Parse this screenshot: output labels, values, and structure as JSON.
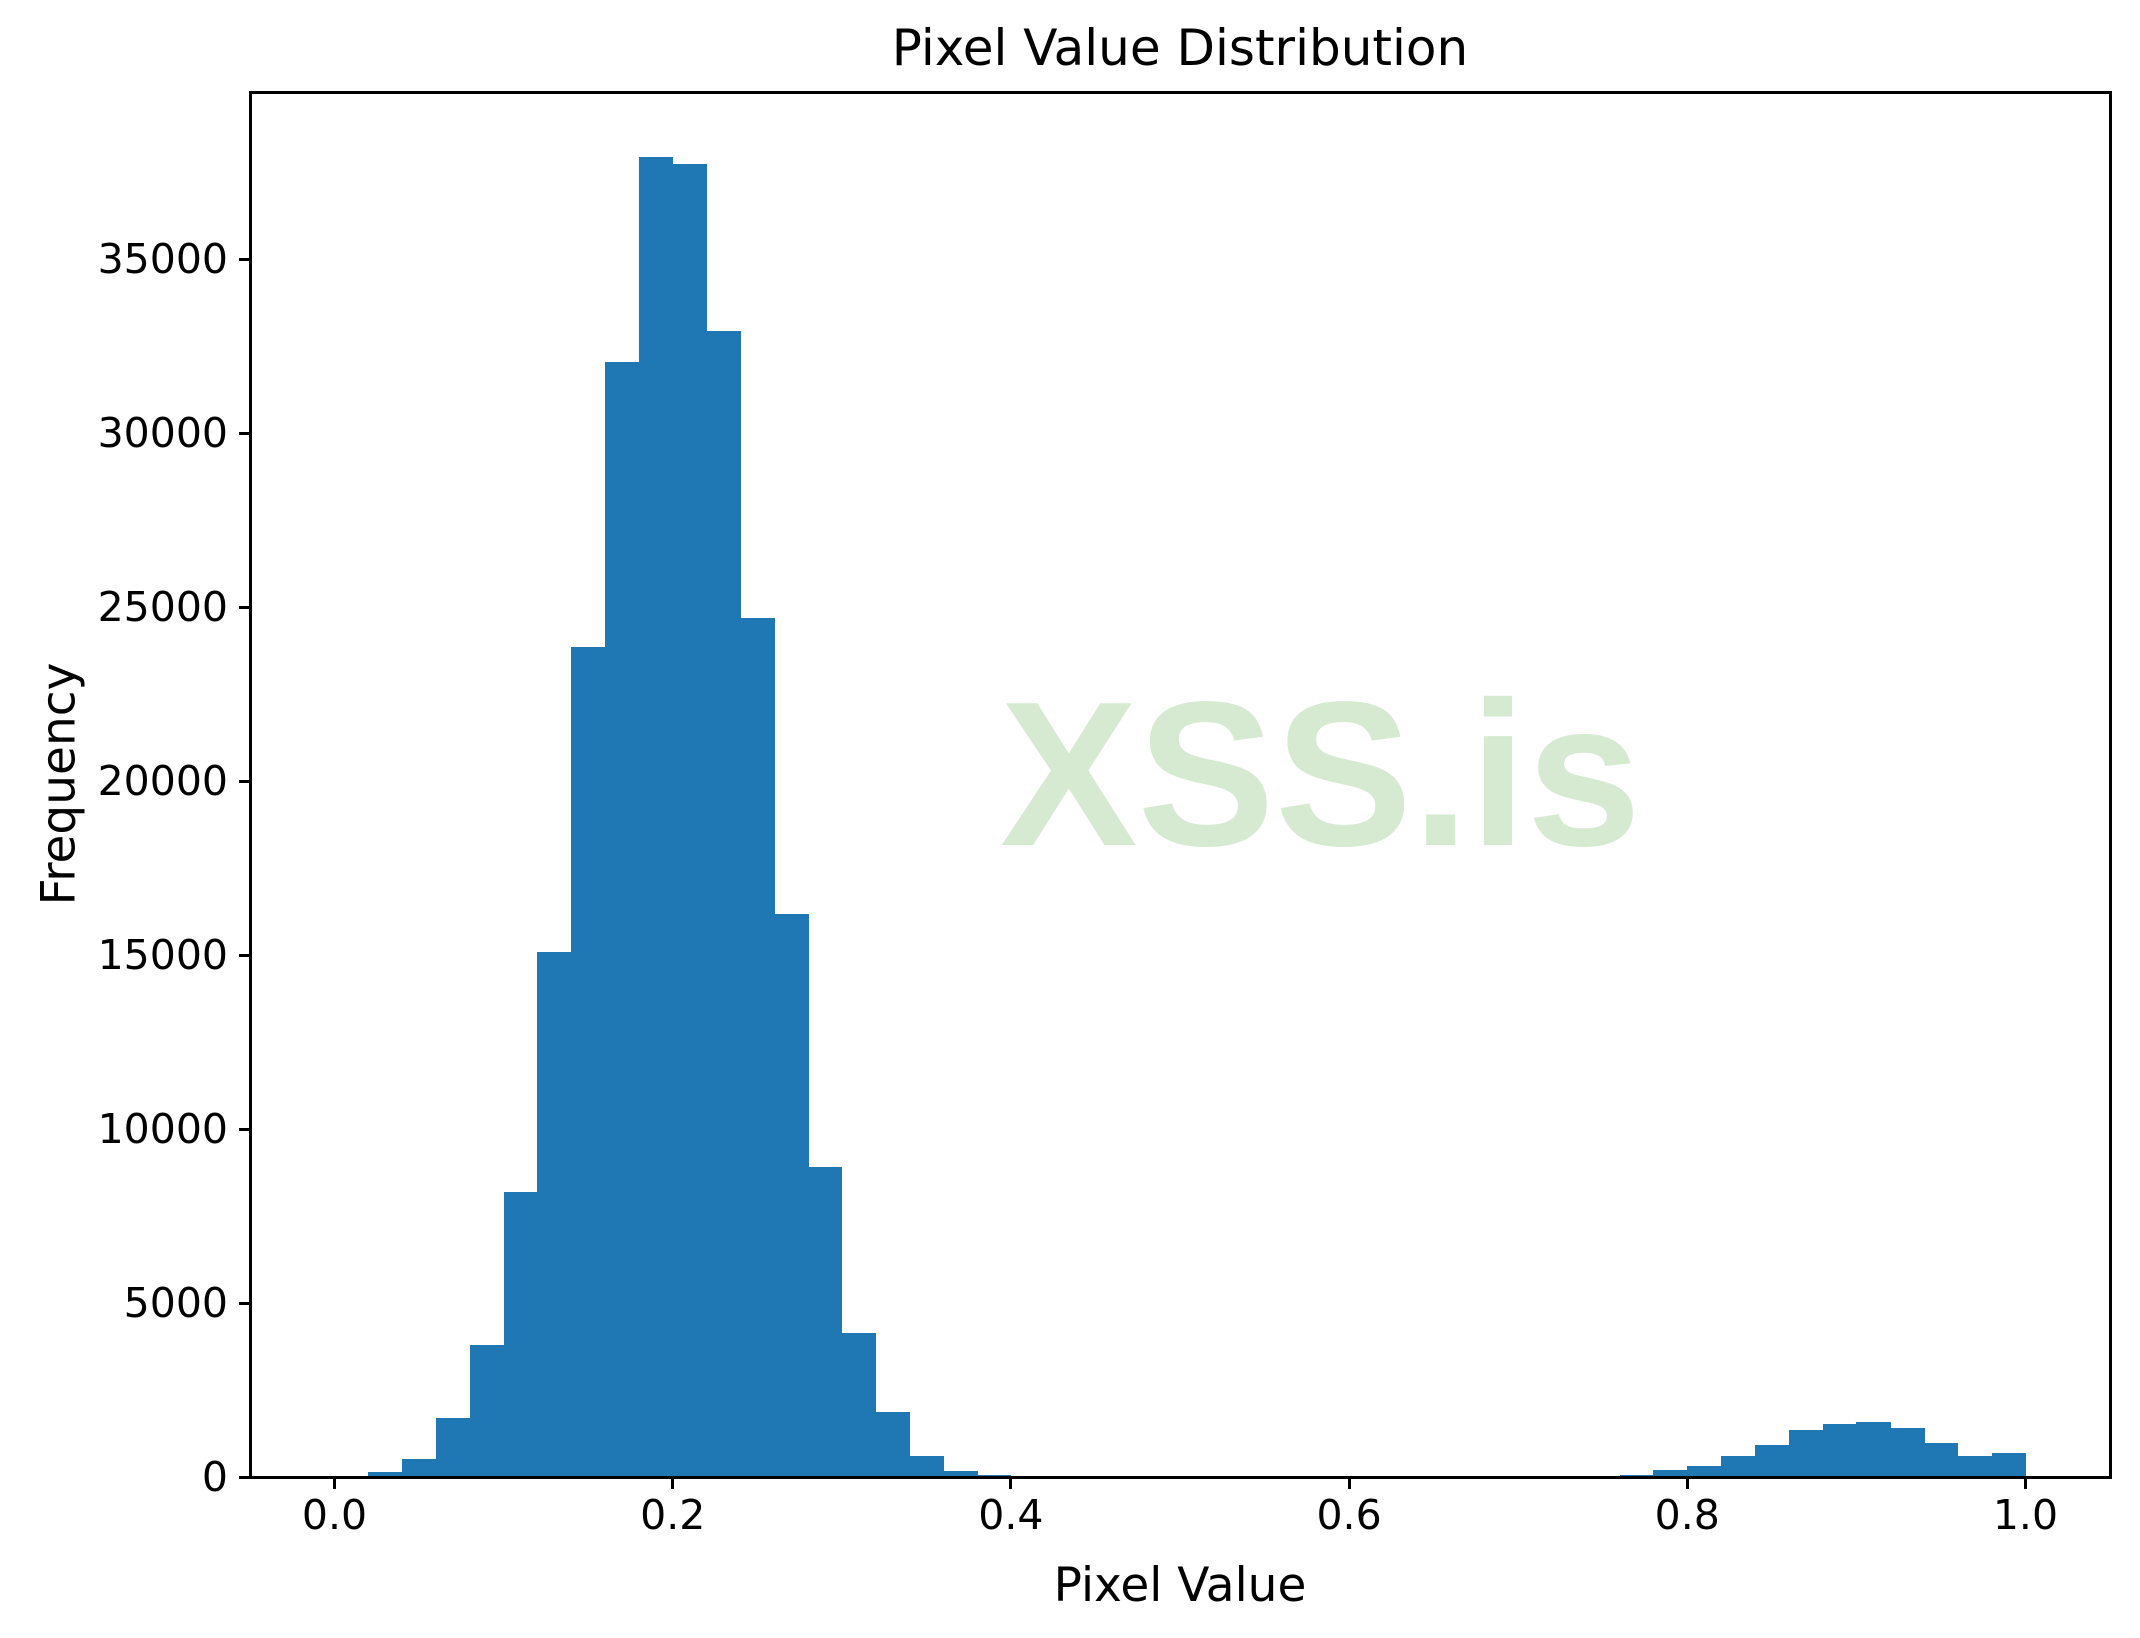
{
  "figure": {
    "background": "#ffffff"
  },
  "watermark": {
    "text": "XSS.is",
    "color": "#afd7a7",
    "opacity": 0.5
  },
  "chart_data": {
    "type": "bar",
    "subtype": "histogram",
    "title": "Pixel Value Distribution",
    "xlabel": "Pixel Value",
    "ylabel": "Frequency",
    "bar_color": "#1f77b4",
    "grid": false,
    "legend_position": "none",
    "xlim": [
      -0.05,
      1.05
    ],
    "ylim": [
      0,
      39800
    ],
    "bin_start": 0.0,
    "bin_width": 0.02,
    "values": [
      40,
      150,
      520,
      1700,
      3790,
      8200,
      15100,
      23850,
      32030,
      37920,
      37740,
      32940,
      24690,
      16180,
      8900,
      4140,
      1860,
      600,
      180,
      70,
      0,
      0,
      0,
      0,
      0,
      0,
      0,
      0,
      0,
      0,
      0,
      0,
      0,
      0,
      0,
      0,
      0,
      0,
      60,
      190,
      310,
      600,
      910,
      1340,
      1510,
      1590,
      1410,
      990,
      600,
      690
    ],
    "x_ticks": [
      0.0,
      0.2,
      0.4,
      0.6,
      0.8,
      1.0
    ],
    "x_tick_labels": [
      "0.0",
      "0.2",
      "0.4",
      "0.6",
      "0.8",
      "1.0"
    ],
    "y_ticks": [
      0,
      5000,
      10000,
      15000,
      20000,
      25000,
      30000,
      35000
    ],
    "y_tick_labels": [
      "0",
      "5000",
      "10000",
      "15000",
      "20000",
      "25000",
      "30000",
      "35000"
    ]
  }
}
